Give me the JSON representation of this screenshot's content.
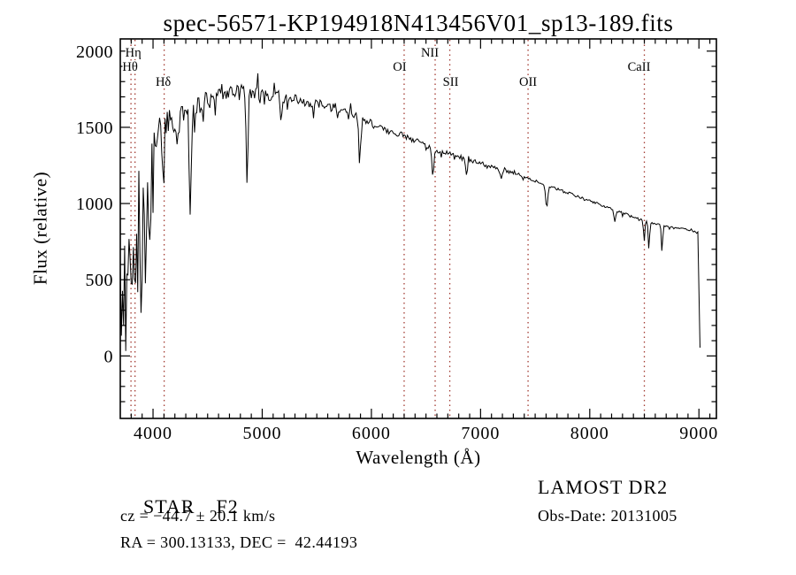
{
  "chart_data": {
    "type": "line",
    "title": "spec-56571-KP194918N413456V01_sp13-189.fits",
    "xlabel": "Wavelength (Å)",
    "ylabel": "Flux (relative)",
    "x_range": [
      3700,
      9160
    ],
    "y_range": [
      -410,
      2080
    ],
    "x_ticks": [
      4000,
      5000,
      6000,
      7000,
      8000,
      9000
    ],
    "x_minor_step": 100,
    "y_ticks": [
      0,
      500,
      1000,
      1500,
      2000
    ],
    "y_minor_step": 100,
    "grid": false,
    "legend": "none",
    "line_color": "#000000",
    "marker_color": "#a23b32",
    "spectral_lines": [
      {
        "label": "Hθ",
        "wavelength": 3798,
        "row": 2,
        "dx": -1
      },
      {
        "label": "Hη",
        "wavelength": 3835,
        "row": 1,
        "dx": -2
      },
      {
        "label": "Hδ",
        "wavelength": 4102,
        "row": 3,
        "dx": -1
      },
      {
        "label": "OI",
        "wavelength": 6300,
        "row": 2,
        "dx": -5
      },
      {
        "label": "NII",
        "wavelength": 6584,
        "row": 1,
        "dx": -6
      },
      {
        "label": "SII",
        "wavelength": 6718,
        "row": 3,
        "dx": 1
      },
      {
        "label": "OII",
        "wavelength": 7435,
        "row": 3,
        "dx": 0
      },
      {
        "label": "CaII",
        "wavelength": 8500,
        "row": 2,
        "dx": -6
      }
    ],
    "continuum": [
      [
        3700,
        950
      ],
      [
        3760,
        1010
      ],
      [
        3820,
        1060
      ],
      [
        3880,
        1120
      ],
      [
        3940,
        1200
      ],
      [
        4000,
        1330
      ],
      [
        4060,
        1440
      ],
      [
        4120,
        1500
      ],
      [
        4200,
        1560
      ],
      [
        4300,
        1600
      ],
      [
        4400,
        1640
      ],
      [
        4500,
        1680
      ],
      [
        4650,
        1720
      ],
      [
        4800,
        1735
      ],
      [
        4950,
        1730
      ],
      [
        5100,
        1710
      ],
      [
        5250,
        1695
      ],
      [
        5400,
        1670
      ],
      [
        5550,
        1645
      ],
      [
        5700,
        1625
      ],
      [
        5850,
        1580
      ],
      [
        6000,
        1525
      ],
      [
        6150,
        1480
      ],
      [
        6300,
        1440
      ],
      [
        6450,
        1400
      ],
      [
        6600,
        1350
      ],
      [
        6750,
        1320
      ],
      [
        6900,
        1285
      ],
      [
        7050,
        1255
      ],
      [
        7200,
        1220
      ],
      [
        7350,
        1190
      ],
      [
        7500,
        1150
      ],
      [
        7650,
        1110
      ],
      [
        7800,
        1070
      ],
      [
        7950,
        1030
      ],
      [
        8100,
        990
      ],
      [
        8250,
        950
      ],
      [
        8400,
        915
      ],
      [
        8550,
        875
      ],
      [
        8700,
        850
      ],
      [
        8850,
        835
      ],
      [
        8990,
        810
      ],
      [
        9000,
        430
      ],
      [
        9010,
        55
      ]
    ],
    "absorption_features": [
      [
        3712,
        550,
        6
      ],
      [
        3727,
        600,
        6
      ],
      [
        3750,
        680,
        7
      ],
      [
        3771,
        730,
        7
      ],
      [
        3798,
        800,
        8
      ],
      [
        3835,
        850,
        9
      ],
      [
        3889,
        900,
        9
      ],
      [
        3933,
        760,
        8
      ],
      [
        3970,
        860,
        9
      ],
      [
        4102,
        420,
        9
      ],
      [
        4227,
        220,
        6
      ],
      [
        4340,
        680,
        9
      ],
      [
        4383,
        180,
        6
      ],
      [
        4861,
        560,
        9
      ],
      [
        5175,
        160,
        9
      ],
      [
        5893,
        300,
        8
      ],
      [
        6563,
        190,
        9
      ],
      [
        6870,
        100,
        8
      ],
      [
        7186,
        70,
        9
      ],
      [
        7605,
        150,
        10
      ],
      [
        8230,
        70,
        9
      ],
      [
        8498,
        130,
        6
      ],
      [
        8542,
        180,
        6
      ],
      [
        8662,
        170,
        6
      ]
    ],
    "noise_amplitude": [
      [
        3700,
        640
      ],
      [
        3780,
        590
      ],
      [
        3860,
        520
      ],
      [
        3940,
        400
      ],
      [
        4000,
        300
      ],
      [
        4100,
        210
      ],
      [
        4200,
        160
      ],
      [
        4300,
        135
      ],
      [
        4450,
        115
      ],
      [
        4600,
        100
      ],
      [
        4800,
        88
      ],
      [
        5000,
        80
      ],
      [
        5200,
        72
      ],
      [
        5400,
        63
      ],
      [
        5600,
        56
      ],
      [
        5800,
        50
      ],
      [
        6000,
        43
      ],
      [
        6200,
        38
      ],
      [
        6400,
        33
      ],
      [
        6600,
        29
      ],
      [
        6800,
        25
      ],
      [
        7000,
        22
      ],
      [
        7200,
        20
      ],
      [
        7400,
        18
      ],
      [
        7600,
        16
      ],
      [
        7800,
        15
      ],
      [
        8000,
        14
      ],
      [
        8200,
        13
      ],
      [
        8400,
        12
      ],
      [
        8600,
        12
      ],
      [
        8800,
        11
      ],
      [
        9010,
        10
      ]
    ],
    "sample_step": 10,
    "random_seed": 3
  },
  "footer": {
    "class_label": "STAR",
    "subclass": "F2",
    "survey": "LAMOST DR2",
    "velocity": "cz = −44.7 ± 20.1 km/s",
    "obs_date": "Obs-Date: 20131005",
    "coordinates": "RA = 300.13133, DEC =  42.44193"
  }
}
